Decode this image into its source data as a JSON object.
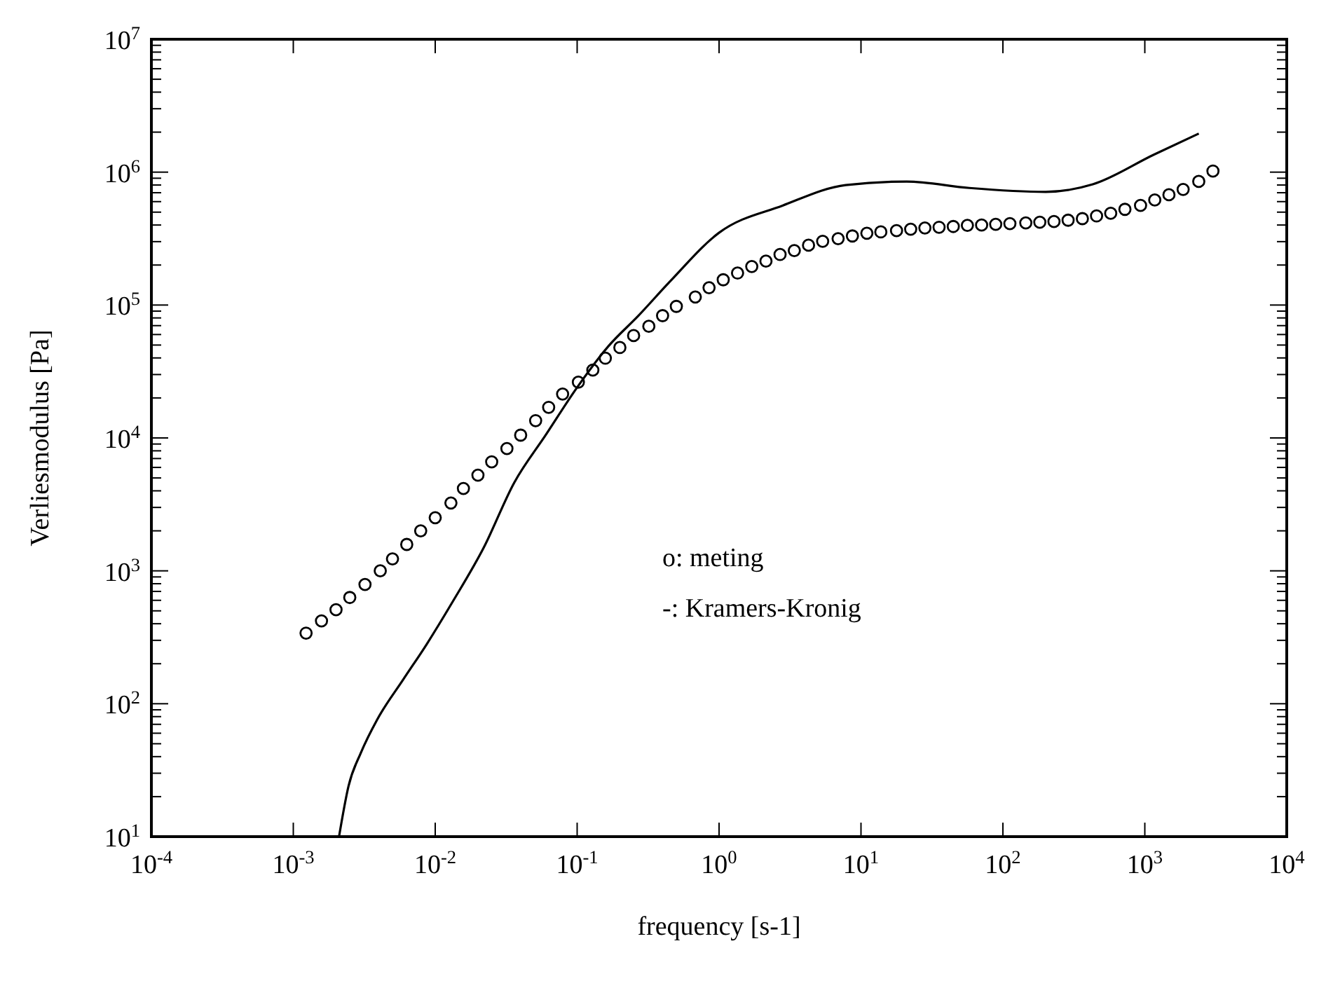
{
  "chart_data": {
    "type": "line",
    "xlabel": "frequency [s-1]",
    "ylabel": "Verliesmodulus [Pa]",
    "log": "xy",
    "grid": false,
    "annotations": [
      "o: meting",
      "-: Kramers-Kronig"
    ],
    "xlim": [
      0.0001,
      10000
    ],
    "ylim": [
      10,
      10000000
    ],
    "xticks": [
      {
        "value": 0.0001,
        "label": "10$^{-4}$"
      },
      {
        "value": 0.001,
        "label": "10$^{-3}$"
      },
      {
        "value": 0.01,
        "label": "10$^{-2}$"
      },
      {
        "value": 0.1,
        "label": "10$^{-1}$"
      },
      {
        "value": 1,
        "label": "10$^{0}$"
      },
      {
        "value": 10,
        "label": "10$^{1}$"
      },
      {
        "value": 100,
        "label": "10$^{2}$"
      },
      {
        "value": 1000,
        "label": "10$^{3}$"
      },
      {
        "value": 10000,
        "label": "10$^{4}$"
      }
    ],
    "yticks": [
      {
        "value": 10,
        "label": "10$^{1}$"
      },
      {
        "value": 20,
        "label": null
      },
      {
        "value": 30,
        "label": null
      },
      {
        "value": 40,
        "label": null
      },
      {
        "value": 50,
        "label": null
      },
      {
        "value": 60,
        "label": null
      },
      {
        "value": 70,
        "label": null
      },
      {
        "value": 80,
        "label": null
      },
      {
        "value": 90,
        "label": null
      },
      {
        "value": 100,
        "label": "10$^{2}$"
      },
      {
        "value": 200,
        "label": null
      },
      {
        "value": 300,
        "label": null
      },
      {
        "value": 400,
        "label": null
      },
      {
        "value": 500,
        "label": null
      },
      {
        "value": 600,
        "label": null
      },
      {
        "value": 700,
        "label": null
      },
      {
        "value": 800,
        "label": null
      },
      {
        "value": 900,
        "label": null
      },
      {
        "value": 1000,
        "label": "10$^{3}$"
      },
      {
        "value": 2000,
        "label": null
      },
      {
        "value": 3000,
        "label": null
      },
      {
        "value": 4000,
        "label": null
      },
      {
        "value": 5000,
        "label": null
      },
      {
        "value": 6000,
        "label": null
      },
      {
        "value": 7000,
        "label": null
      },
      {
        "value": 8000,
        "label": null
      },
      {
        "value": 9000,
        "label": null
      },
      {
        "value": 10000,
        "label": "10$^{4}$"
      },
      {
        "value": 20000,
        "label": null
      },
      {
        "value": 30000,
        "label": null
      },
      {
        "value": 40000,
        "label": null
      },
      {
        "value": 50000,
        "label": null
      },
      {
        "value": 60000,
        "label": null
      },
      {
        "value": 70000,
        "label": null
      },
      {
        "value": 80000,
        "label": null
      },
      {
        "value": 90000,
        "label": null
      },
      {
        "value": 100000,
        "label": "10$^{5}$"
      },
      {
        "value": 200000,
        "label": null
      },
      {
        "value": 300000,
        "label": null
      },
      {
        "value": 400000,
        "label": null
      },
      {
        "value": 500000,
        "label": null
      },
      {
        "value": 600000,
        "label": null
      },
      {
        "value": 700000,
        "label": null
      },
      {
        "value": 800000,
        "label": null
      },
      {
        "value": 900000,
        "label": null
      },
      {
        "value": 1000000,
        "label": "10$^{6}$"
      },
      {
        "value": 2000000,
        "label": null
      },
      {
        "value": 3000000,
        "label": null
      },
      {
        "value": 4000000,
        "label": null
      },
      {
        "value": 5000000,
        "label": null
      },
      {
        "value": 6000000,
        "label": null
      },
      {
        "value": 7000000,
        "label": null
      },
      {
        "value": 8000000,
        "label": null
      },
      {
        "value": 9000000,
        "label": null
      },
      {
        "value": 10000000,
        "label": "10$^{7}$"
      }
    ],
    "series": [
      {
        "type": "scatter",
        "marker": "circle",
        "color": "#000000",
        "x": [
          0.00123,
          0.00158,
          0.002,
          0.0025,
          0.0032,
          0.0041,
          0.005,
          0.0063,
          0.0079,
          0.01,
          0.0129,
          0.0158,
          0.02,
          0.025,
          0.032,
          0.04,
          0.051,
          0.063,
          0.079,
          0.102,
          0.129,
          0.158,
          0.2,
          0.25,
          0.32,
          0.4,
          0.5,
          0.68,
          0.85,
          1.07,
          1.35,
          1.7,
          2.14,
          2.69,
          3.39,
          4.27,
          5.37,
          6.9,
          8.7,
          11,
          13.8,
          17.8,
          22.4,
          28.2,
          35.5,
          44.7,
          56.2,
          70.8,
          89,
          112,
          145,
          182,
          229,
          288,
          363,
          457,
          575,
          724,
          933,
          1175,
          1479,
          1862,
          2399,
          3020
        ],
        "values": [
          340,
          420,
          510,
          630,
          790,
          1000,
          1230,
          1580,
          2000,
          2510,
          3240,
          4170,
          5250,
          6610,
          8320,
          10500,
          13500,
          17000,
          21400,
          26300,
          32400,
          39800,
          47900,
          58900,
          69200,
          83200,
          97700,
          115000,
          135000,
          155000,
          174000,
          195000,
          214000,
          240000,
          257000,
          282000,
          302000,
          316000,
          331000,
          347000,
          355000,
          363000,
          372000,
          380000,
          385000,
          390000,
          398000,
          400000,
          405000,
          410000,
          415000,
          420000,
          425000,
          435000,
          447000,
          468000,
          490000,
          525000,
          562000,
          617000,
          676000,
          741000,
          851000,
          1020000
        ]
      },
      {
        "line_style": "solid",
        "marker": "none",
        "color": "#000000",
        "x": [
          0.0021,
          0.00245,
          0.003,
          0.0039,
          0.0059,
          0.0087,
          0.0132,
          0.022,
          0.036,
          0.06,
          0.1,
          0.166,
          0.27,
          0.45,
          1,
          2.8,
          7.8,
          21,
          58,
          200,
          430,
          1150,
          2400
        ],
        "values": [
          10,
          24,
          43,
          76,
          150,
          280,
          580,
          1500,
          4600,
          10500,
          24000,
          49000,
          83000,
          150000,
          350000,
          560000,
          800000,
          850000,
          760000,
          710000,
          810000,
          1350000,
          1950000
        ]
      }
    ]
  }
}
